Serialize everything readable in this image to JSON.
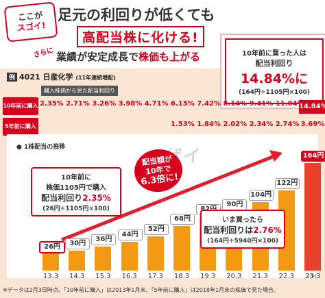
{
  "header": {
    "badge_line1": "ここが",
    "badge_line2": "スゴイ!",
    "title_line1": "足元の利回りが低くても",
    "title_line2": "高配当株に化ける!",
    "sarani": "さらに",
    "title_line3_a": "業績が安定成長で",
    "title_line3_b": "株価も上がる"
  },
  "callout_top": {
    "line1": "10年前に買った人は",
    "line2": "配当利回り",
    "line3": "14.84%に",
    "line4": "(164円÷1105円×100)"
  },
  "company": {
    "tag": "例",
    "code_name": "4021 日産化学",
    "sub": "(11年連続増配)"
  },
  "yield_table": {
    "header": "購入株価から見た配当利回り",
    "row1_label": "10年前に購入",
    "row1": [
      "2.35%",
      "2.71%",
      "3.26%",
      "3.98%",
      "4.71%",
      "6.15%",
      "7.42%",
      "8.14%",
      "9.41%",
      "11.04%",
      "14.84%"
    ],
    "row2_label": "5年前に購入",
    "row2": [
      "",
      "",
      "",
      "",
      "",
      "1.53%",
      "1.84%",
      "2.02%",
      "2.34%",
      "2.74%",
      "3.69%"
    ]
  },
  "chart_data": {
    "type": "bar",
    "title": "1株配当の推移",
    "categories": [
      "13.3",
      "14.3",
      "15.3",
      "16.3",
      "17.3",
      "18.3",
      "19.3",
      "20.3",
      "21.3",
      "22.3",
      "23.3"
    ],
    "values": [
      26,
      30,
      36,
      44,
      52,
      68,
      82,
      90,
      104,
      122,
      164
    ],
    "value_labels": [
      "26円",
      "30円",
      "36円",
      "44円",
      "52円",
      "68円",
      "82円",
      "90円",
      "104円",
      "122円",
      "164円"
    ],
    "forecast_mark": "(予)",
    "ylim": [
      0,
      170
    ],
    "colors": {
      "bar": "#f39a12",
      "last_bar": "#e8432f",
      "accent": "#d6001c"
    }
  },
  "notes": {
    "left_line1": "10年前に",
    "left_line2": "株価1105円で購入",
    "left_line3_a": "配当利回り",
    "left_line3_b": "2.35%",
    "left_line4": "(26円÷1105円×100)",
    "bubble_line1": "配当額が",
    "bubble_line2": "10年で",
    "bubble_line3": "6.3倍に!",
    "right_line1": "いま買ったら",
    "right_line2_a": "配当利回りは",
    "right_line2_b": "2.76%",
    "right_line3": "(164円÷5940円×100)"
  },
  "watermark": "ザイ",
  "footnote": "※データは2月3日時点。「10年前に購入」は2013年1月末、「5年前に購入」は2018年1月末の株価で見た場合。"
}
